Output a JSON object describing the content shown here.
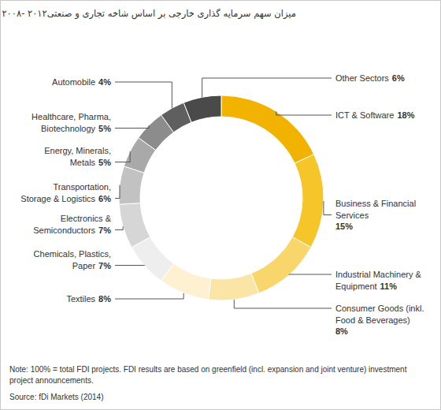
{
  "chart_data": {
    "type": "pie",
    "title": "میزان سهم سرمایه گذاری خارجی بر اساس شاخه تجاری و صنعتی۲۰۱۲ -۲۰۰۸",
    "categories": [
      "ICT & Software",
      "Business & Financial Services",
      "Industrial Machinery & Equipment",
      "Consumer Goods (inkl. Food & Beverages)",
      "Textiles",
      "Chemicals, Plastics, Paper",
      "Electronics & Semiconductors",
      "Transportation, Storage & Logistics",
      "Energy, Minerals, Metals",
      "Healthcare, Pharma, Biotechnology",
      "Automobile",
      "Other Sectors"
    ],
    "values": [
      18,
      15,
      11,
      8,
      8,
      7,
      7,
      6,
      5,
      5,
      4,
      6
    ],
    "value_labels": [
      "18%",
      "15%",
      "11%",
      "8%",
      "8%",
      "7%",
      "7%",
      "6%",
      "5%",
      "5%",
      "4%",
      "6%"
    ],
    "colors": [
      "#f2b200",
      "#f6c52a",
      "#f9d66c",
      "#fbe5a6",
      "#fdf1d2",
      "#eeeeee",
      "#d6d6d6",
      "#c2c2c2",
      "#a9a9a9",
      "#8c8c8c",
      "#5f5f5f",
      "#4a4a4a"
    ],
    "data_labels": true,
    "note": "Note: 100% = total FDI projects. FDI results are based on greenfield (incl. expansion and joint venture) investment project announcements.",
    "source": "Source: fDi Markets (2014)"
  }
}
